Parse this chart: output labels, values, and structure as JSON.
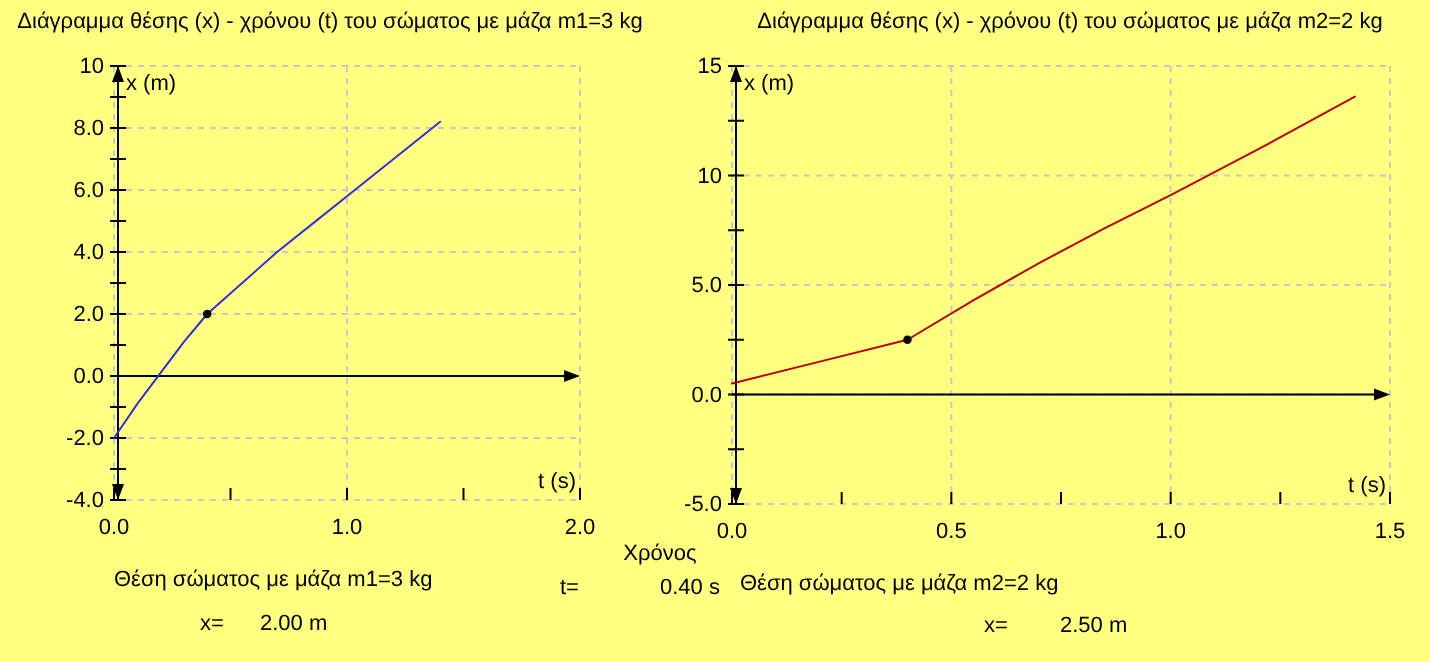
{
  "chart_data": [
    {
      "type": "line",
      "title": "Διάγραμμα θέσης (x) - χρόνου (t) του σώματος με μάζα m1=3 kg",
      "xlabel": "t (s)",
      "ylabel": "x (m)",
      "xlim": [
        0,
        2
      ],
      "xticks": [
        {
          "value": 0,
          "label": "0.0"
        },
        {
          "value": 0.5,
          "label": null
        },
        {
          "value": 1,
          "label": "1.0"
        },
        {
          "value": 1.5,
          "label": null
        },
        {
          "value": 2,
          "label": "2.0"
        }
      ],
      "ylim": [
        -4,
        10
      ],
      "yticks": [
        {
          "value": -4,
          "label": "-4.0"
        },
        {
          "value": -3,
          "label": null
        },
        {
          "value": -2,
          "label": "-2.0"
        },
        {
          "value": -1,
          "label": null
        },
        {
          "value": 0,
          "label": "0.0"
        },
        {
          "value": 1,
          "label": null
        },
        {
          "value": 2,
          "label": "2.0"
        },
        {
          "value": 3,
          "label": null
        },
        {
          "value": 4,
          "label": "4.0"
        },
        {
          "value": 5,
          "label": null
        },
        {
          "value": 6,
          "label": "6.0"
        },
        {
          "value": 7,
          "label": null
        },
        {
          "value": 8,
          "label": "8.0"
        },
        {
          "value": 9,
          "label": null
        },
        {
          "value": 10,
          "label": "10"
        }
      ],
      "grid": true,
      "series": [
        {
          "type": "line",
          "color": "#3030e0",
          "x": [
            0,
            0.1,
            0.2,
            0.3,
            0.4,
            0.55,
            0.7,
            0.85,
            1.0,
            1.2,
            1.4
          ],
          "values": [
            -2,
            -0.9,
            0.1,
            1.1,
            2,
            3,
            4,
            4.9,
            5.8,
            7,
            8.2
          ]
        },
        {
          "type": "scatter",
          "color": "#000000",
          "marker": "circle",
          "x": [
            0.4
          ],
          "values": [
            2
          ]
        }
      ],
      "annotations": [
        "Θέση σώματος με μάζα m1=3 kg",
        "x=",
        "2.00 m"
      ]
    },
    {
      "type": "line",
      "title": "Διάγραμμα θέσης (x) - χρόνου (t) του σώματος με μάζα m2=2 kg",
      "xlabel": "t (s)",
      "ylabel": "x (m)",
      "xlim": [
        0,
        1.5
      ],
      "xticks": [
        {
          "value": 0,
          "label": "0.0"
        },
        {
          "value": 0.25,
          "label": null
        },
        {
          "value": 0.5,
          "label": "0.5"
        },
        {
          "value": 0.75,
          "label": null
        },
        {
          "value": 1,
          "label": "1.0"
        },
        {
          "value": 1.25,
          "label": null
        },
        {
          "value": 1.5,
          "label": "1.5"
        }
      ],
      "ylim": [
        -5,
        15
      ],
      "yticks": [
        {
          "value": -5,
          "label": "-5.0"
        },
        {
          "value": -2.5,
          "label": null
        },
        {
          "value": 0,
          "label": "0.0"
        },
        {
          "value": 2.5,
          "label": null
        },
        {
          "value": 5,
          "label": "5.0"
        },
        {
          "value": 7.5,
          "label": null
        },
        {
          "value": 10,
          "label": "10"
        },
        {
          "value": 12.5,
          "label": null
        },
        {
          "value": 15,
          "label": "15"
        }
      ],
      "grid": true,
      "series": [
        {
          "type": "line",
          "color": "#c00000",
          "x": [
            0,
            0.2,
            0.4,
            0.55,
            0.7,
            0.85,
            1.0,
            1.2,
            1.42
          ],
          "values": [
            0.5,
            1.5,
            2.5,
            4.3,
            6,
            7.6,
            9.1,
            11.2,
            13.6
          ]
        },
        {
          "type": "scatter",
          "color": "#000000",
          "marker": "circle",
          "x": [
            0.4
          ],
          "values": [
            2.5
          ]
        }
      ],
      "annotations": [
        "Θέση σώματος με μάζα m2=2 kg",
        "x=",
        "2.50 m"
      ]
    },
    {
      "type": "other",
      "annotations": [
        "Χρόνος",
        "t=",
        "0.40 s"
      ]
    }
  ]
}
